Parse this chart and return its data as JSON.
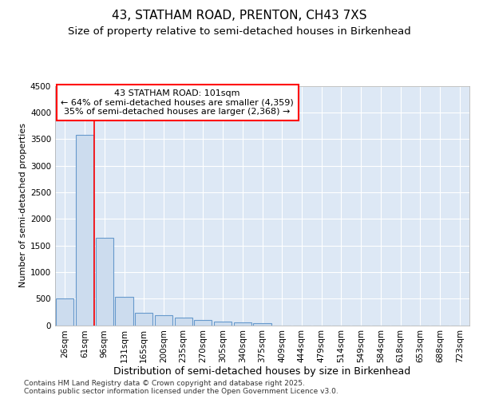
{
  "title1": "43, STATHAM ROAD, PRENTON, CH43 7XS",
  "title2": "Size of property relative to semi-detached houses in Birkenhead",
  "xlabel": "Distribution of semi-detached houses by size in Birkenhead",
  "ylabel": "Number of semi-detached properties",
  "categories": [
    "26sqm",
    "61sqm",
    "96sqm",
    "131sqm",
    "165sqm",
    "200sqm",
    "235sqm",
    "270sqm",
    "305sqm",
    "340sqm",
    "375sqm",
    "409sqm",
    "444sqm",
    "479sqm",
    "514sqm",
    "549sqm",
    "584sqm",
    "618sqm",
    "653sqm",
    "688sqm",
    "723sqm"
  ],
  "values": [
    510,
    3580,
    1650,
    540,
    240,
    185,
    145,
    95,
    65,
    55,
    35,
    0,
    0,
    0,
    0,
    0,
    0,
    0,
    0,
    0,
    0
  ],
  "bar_color": "#ccdcee",
  "bar_edge_color": "#6699cc",
  "redline_bin": 2,
  "ann_line1": "43 STATHAM ROAD: 101sqm",
  "ann_line2": "← 64% of semi-detached houses are smaller (4,359)",
  "ann_line3": "35% of semi-detached houses are larger (2,368) →",
  "ylim": [
    0,
    4500
  ],
  "yticks": [
    0,
    500,
    1000,
    1500,
    2000,
    2500,
    3000,
    3500,
    4000,
    4500
  ],
  "bg_color": "#ffffff",
  "plot_bg_color": "#dde8f5",
  "footnote": "Contains HM Land Registry data © Crown copyright and database right 2025.\nContains public sector information licensed under the Open Government Licence v3.0.",
  "title1_fontsize": 11,
  "title2_fontsize": 9.5,
  "xlabel_fontsize": 9,
  "ylabel_fontsize": 8,
  "tick_fontsize": 7.5,
  "ann_fontsize": 8,
  "footnote_fontsize": 6.5
}
